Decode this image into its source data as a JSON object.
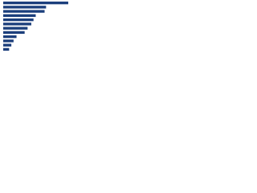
{
  "chart_data": {
    "type": "bar",
    "orientation": "horizontal",
    "categories": [
      null,
      null,
      null,
      null,
      null,
      null,
      null,
      null,
      null,
      null,
      null,
      null
    ],
    "values": [
      88,
      58,
      56,
      44,
      41,
      38,
      33,
      29,
      18,
      14,
      11,
      8
    ],
    "color": "#1c3f7c",
    "xlim": [
      0,
      100
    ]
  }
}
